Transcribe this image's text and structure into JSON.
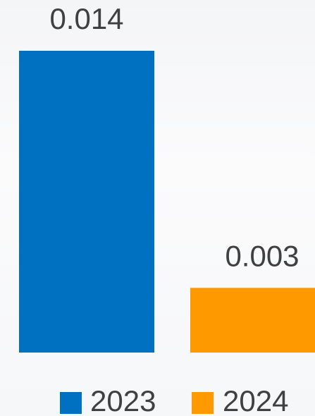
{
  "chart_data": {
    "type": "bar",
    "series": [
      {
        "name": "2023",
        "color": "#0070c0",
        "values": [
          0.014
        ]
      },
      {
        "name": "2024",
        "color": "#ff9900",
        "values": [
          0.003
        ]
      }
    ],
    "legend": "bottom"
  }
}
